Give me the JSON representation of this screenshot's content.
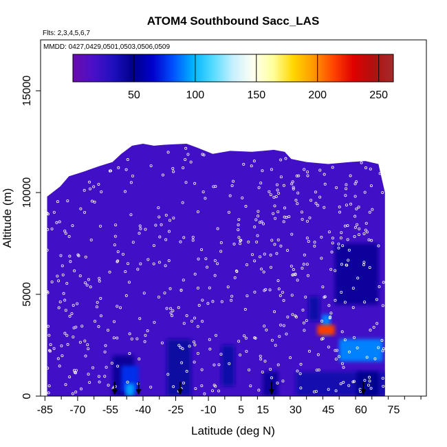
{
  "chart_data": {
    "type": "heatmap",
    "title": "ATOM4 Southbound Sacc_LAS",
    "flights_note": "Flts: 2,3,4,5,6,7",
    "dates_note": "MMDD: 0427,0429,0501,0503,0506,0509",
    "xlabel": "Latitude (deg N)",
    "ylabel": "Altitude (m)",
    "xlim": [
      -87,
      90
    ],
    "ylim": [
      0,
      17500
    ],
    "x_ticks": [
      -85,
      -70,
      -55,
      -40,
      -25,
      -10,
      5,
      15,
      30,
      45,
      60,
      75
    ],
    "x_tick_labels": [
      "-85",
      "-70",
      "-55",
      "-40",
      "-25",
      "-10",
      "5",
      "15",
      "30",
      "45",
      "60",
      "75"
    ],
    "y_ticks": [
      0,
      5000,
      10000,
      15000
    ],
    "y_tick_labels": [
      "0",
      "5000",
      "10000",
      "15000"
    ],
    "colorbar": {
      "min": 0,
      "max": 262,
      "ticks": [
        50,
        100,
        150,
        200,
        250
      ],
      "tick_labels": [
        "50",
        "100",
        "150",
        "200",
        "250"
      ],
      "colors": [
        "#6a0dad",
        "#4b0fc8",
        "#1f0fbf",
        "#00008b",
        "#0000cd",
        "#0050ff",
        "#00b4ff",
        "#55dcff",
        "#c8f0ff",
        "#fffff0",
        "#ffff9c",
        "#ffd700",
        "#ff9900",
        "#ff4500",
        "#e00000",
        "#b01010",
        "#a52a2a"
      ]
    },
    "profile_arrows_lat": [
      -53,
      -42,
      -23,
      19,
      61
    ],
    "coverage": [
      [
        -84,
        9800
      ],
      [
        -78,
        10300
      ],
      [
        -74,
        10800
      ],
      [
        -68,
        11000
      ],
      [
        -60,
        11300
      ],
      [
        -54,
        11500
      ],
      [
        -50,
        11900
      ],
      [
        -45,
        12300
      ],
      [
        -40,
        12400
      ],
      [
        -35,
        12300
      ],
      [
        -30,
        12350
      ],
      [
        -20,
        12400
      ],
      [
        -15,
        12200
      ],
      [
        -8,
        11900
      ],
      [
        0,
        12050
      ],
      [
        10,
        12000
      ],
      [
        20,
        12100
      ],
      [
        25,
        12000
      ],
      [
        28,
        11650
      ],
      [
        35,
        11500
      ],
      [
        45,
        11400
      ],
      [
        55,
        11500
      ],
      [
        62,
        11550
      ],
      [
        68,
        11400
      ],
      [
        71,
        10000
      ]
    ],
    "regions": [
      {
        "lat": [
          -84,
          72
        ],
        "alt": [
          0,
          12400
        ],
        "value": 20
      },
      {
        "lat": [
          -54,
          -44
        ],
        "alt": [
          0,
          2000
        ],
        "value": 45
      },
      {
        "lat": [
          -50,
          -42
        ],
        "alt": [
          200,
          1500
        ],
        "value": 75
      },
      {
        "lat": [
          -48,
          -44
        ],
        "alt": [
          0,
          600
        ],
        "value": 95
      },
      {
        "lat": [
          -29,
          -18
        ],
        "alt": [
          0,
          2800
        ],
        "value": 42
      },
      {
        "lat": [
          -4,
          2
        ],
        "alt": [
          500,
          2500
        ],
        "value": 40
      },
      {
        "lat": [
          15,
          22
        ],
        "alt": [
          0,
          1200
        ],
        "value": 44
      },
      {
        "lat": [
          36,
          41
        ],
        "alt": [
          3700,
          4900
        ],
        "value": 40
      },
      {
        "lat": [
          42,
          46
        ],
        "alt": [
          3000,
          4000
        ],
        "value": 90
      },
      {
        "lat": [
          40,
          48
        ],
        "alt": [
          3000,
          3500
        ],
        "value": 215
      },
      {
        "lat": [
          48,
          68
        ],
        "alt": [
          4500,
          7500
        ],
        "value": 44
      },
      {
        "lat": [
          50,
          70
        ],
        "alt": [
          1700,
          2800
        ],
        "value": 90
      },
      {
        "lat": [
          30,
          72
        ],
        "alt": [
          0,
          1200
        ],
        "value": 38
      },
      {
        "lat": [
          58,
          68
        ],
        "alt": [
          0,
          1200
        ],
        "value": 48
      }
    ]
  }
}
